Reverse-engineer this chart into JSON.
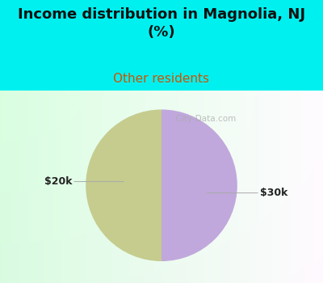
{
  "title": "Income distribution in Magnolia, NJ\n(%)",
  "subtitle": "Other residents",
  "slices": [
    50,
    50
  ],
  "labels": [
    "$20k",
    "$30k"
  ],
  "colors": [
    "#c5cc8e",
    "#c0a8dc"
  ],
  "background_color": "#00f0f0",
  "title_fontsize": 13,
  "subtitle_fontsize": 11,
  "subtitle_color": "#cc5500",
  "label_fontsize": 9,
  "watermark": "  City-Data.com",
  "startangle": 90,
  "chart_bg_left": "#cce8d8",
  "chart_bg_right": "#f8f8ff"
}
